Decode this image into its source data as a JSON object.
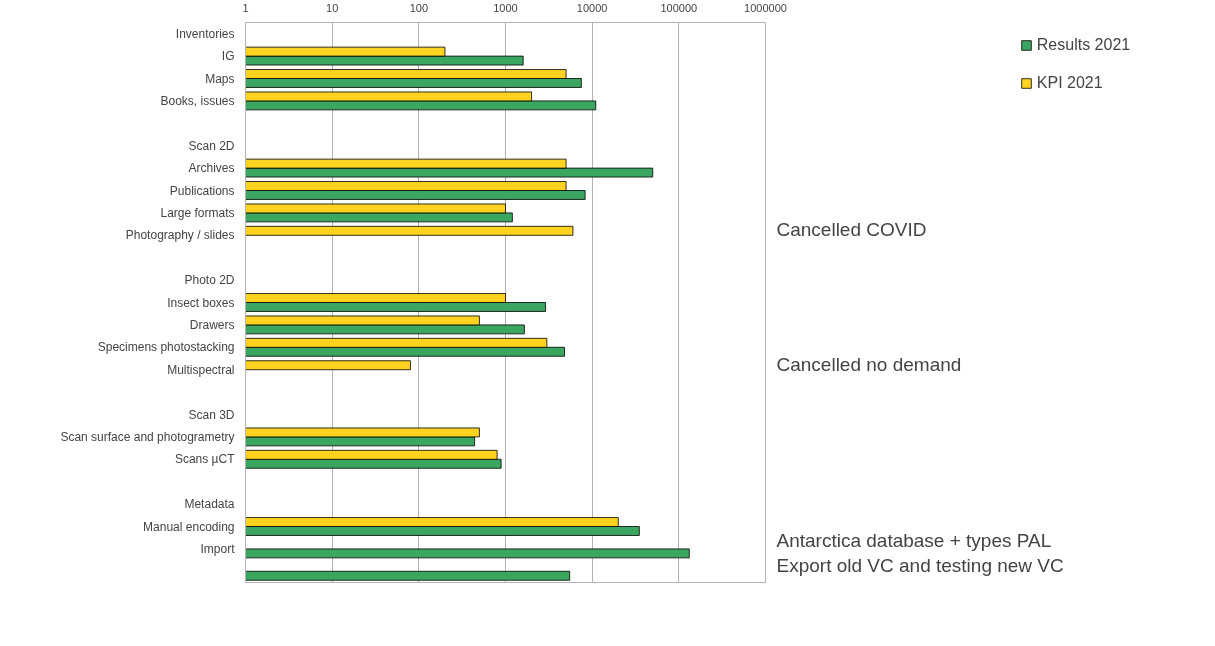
{
  "chart_data": {
    "type": "bar",
    "orientation": "horizontal",
    "categories": [
      "Inventories",
      "IG",
      "Maps",
      "Books, issues",
      null,
      "Scan 2D",
      "Archives",
      "Publications",
      "Large formats",
      "Photography / slides",
      null,
      "Photo 2D",
      "Insect boxes",
      "Drawers",
      "Specimens photostacking",
      "Multispectral",
      null,
      "Scan 3D",
      "Scan surface and photogrametry",
      "Scans µCT",
      null,
      "Metadata",
      "Manual encoding",
      "Import",
      null
    ],
    "series": [
      {
        "name": "Results 2021",
        "color": "#3aa660",
        "values": [
          null,
          1600,
          7500,
          11000,
          null,
          null,
          50000,
          8300,
          1200,
          null,
          null,
          null,
          2900,
          1650,
          4800,
          null,
          null,
          null,
          440,
          890,
          null,
          null,
          35000,
          132000,
          5500
        ]
      },
      {
        "name": "KPI 2021",
        "color": "#ffd320",
        "values": [
          null,
          200,
          5000,
          2000,
          null,
          null,
          5000,
          5000,
          1000,
          6000,
          null,
          null,
          1000,
          500,
          3000,
          80,
          null,
          null,
          500,
          800,
          null,
          null,
          20000,
          null,
          null
        ]
      }
    ],
    "log": "x",
    "xlim": [
      1,
      1000000
    ],
    "xticks": [
      1,
      10,
      100,
      1000,
      10000,
      100000,
      1000000
    ],
    "grid": "x",
    "legend": "top right",
    "annotations": [
      "Cancelled COVID",
      "Cancelled no demand",
      "Antarctica database + types PAL",
      "Export old VC and testing new VC"
    ]
  }
}
